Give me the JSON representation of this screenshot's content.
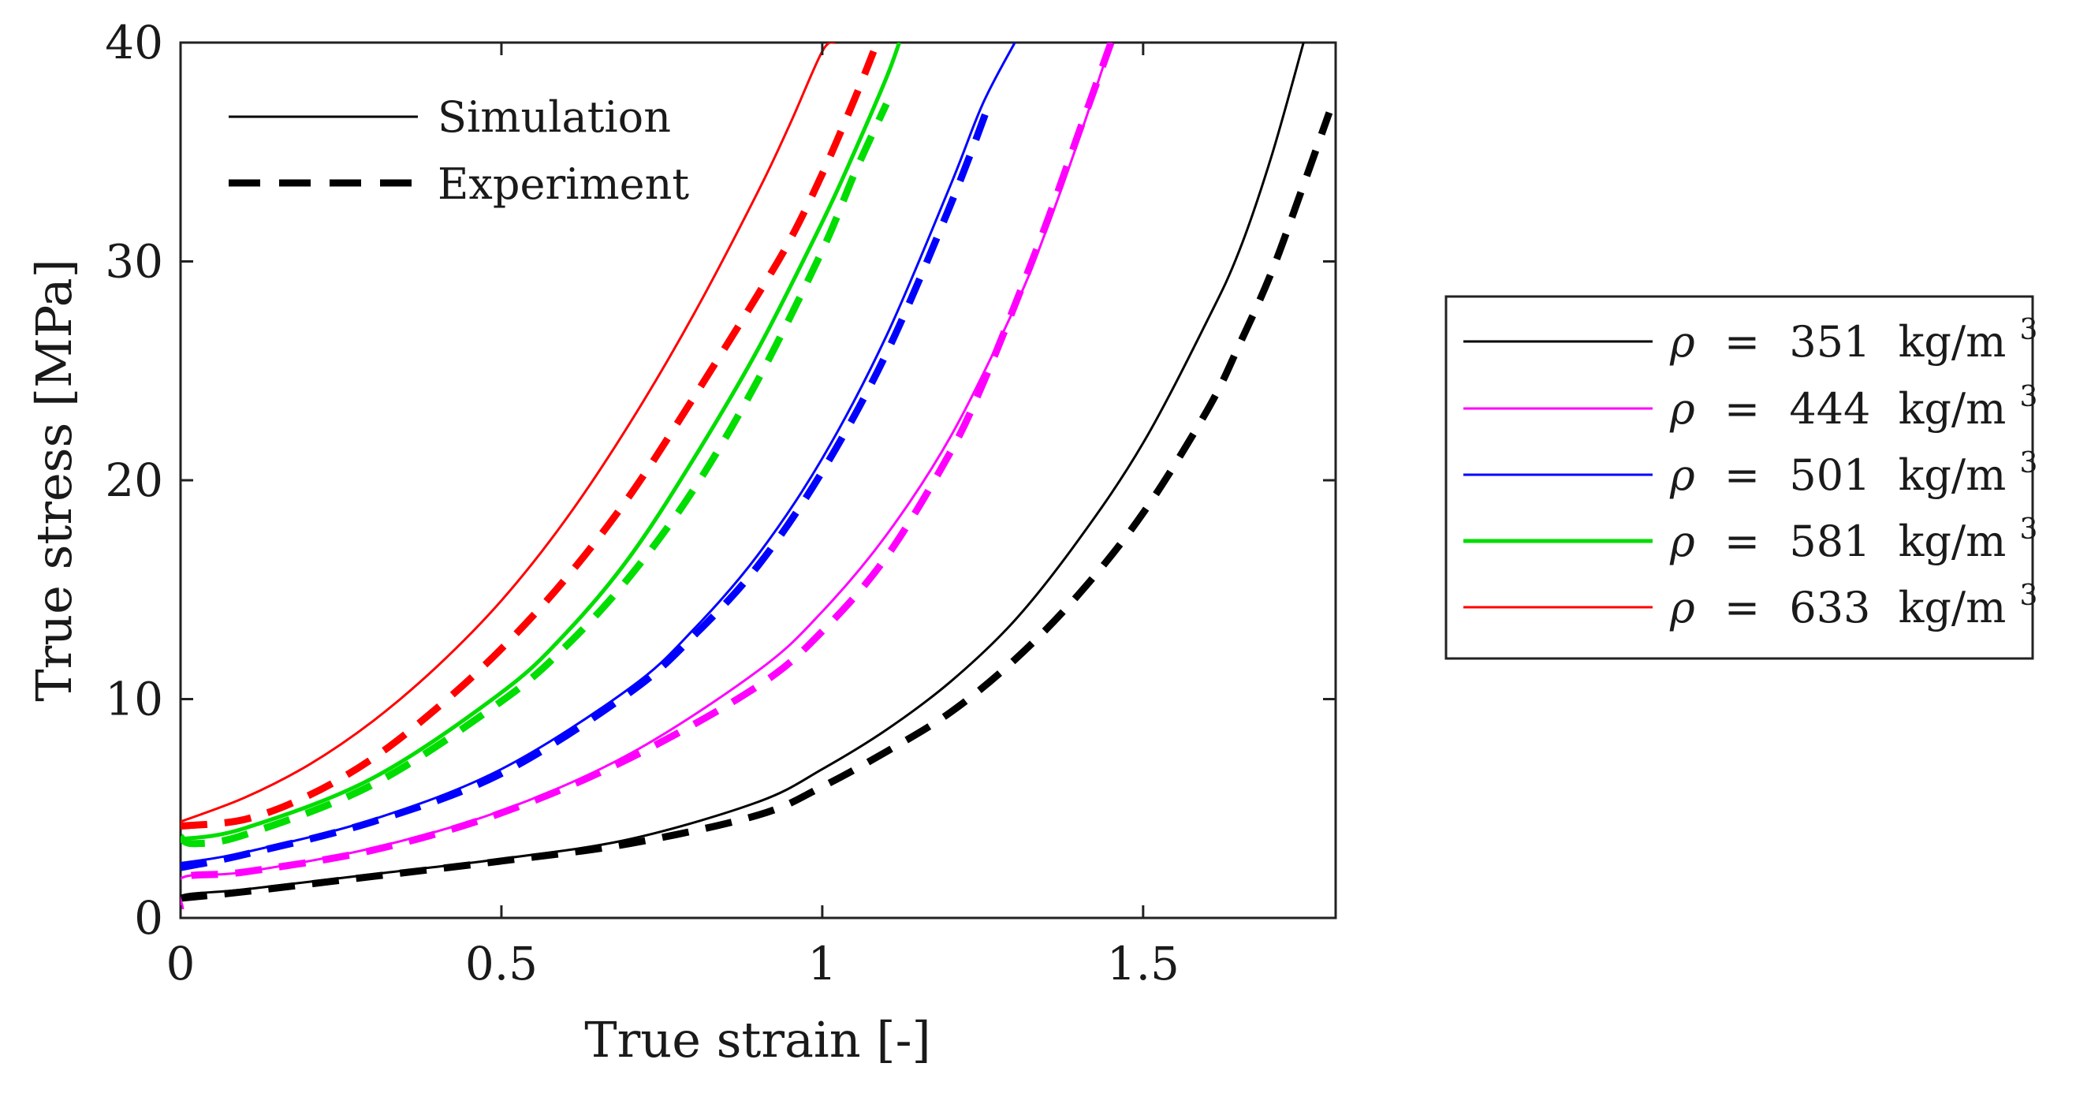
{
  "chart_data": {
    "type": "line",
    "xlabel": "True strain [-]",
    "ylabel": "True stress [MPa]",
    "xlim": [
      0,
      1.8
    ],
    "ylim": [
      0,
      40
    ],
    "xticks": [
      0,
      0.5,
      1,
      1.5
    ],
    "xtick_labels": [
      "0",
      "0.5",
      "1",
      "1.5"
    ],
    "yticks": [
      0,
      10,
      20,
      30,
      40
    ],
    "ytick_labels": [
      "0",
      "10",
      "20",
      "30",
      "40"
    ],
    "grid": false,
    "style_legend": {
      "placement": "top-left",
      "entries": [
        {
          "label": "Simulation",
          "dash": "solid"
        },
        {
          "label": "Experiment",
          "dash": "dashed"
        }
      ]
    },
    "density_legend": {
      "placement": "outside-right",
      "entries": [
        {
          "symbol": "ρ",
          "equals": "=",
          "value": "351",
          "unit": "kg/m",
          "exponent": "3",
          "color": "#000000"
        },
        {
          "symbol": "ρ",
          "equals": "=",
          "value": "444",
          "unit": "kg/m",
          "exponent": "3",
          "color": "#ff00ff"
        },
        {
          "symbol": "ρ",
          "equals": "=",
          "value": "501",
          "unit": "kg/m",
          "exponent": "3",
          "color": "#0000ff"
        },
        {
          "symbol": "ρ",
          "equals": "=",
          "value": "581",
          "unit": "kg/m",
          "exponent": "3",
          "color": "#00dd00"
        },
        {
          "symbol": "ρ",
          "equals": "=",
          "value": "633",
          "unit": "kg/m",
          "exponent": "3",
          "color": "#ff0000"
        }
      ]
    },
    "series": [
      {
        "kind": "simulation",
        "density": "351",
        "color": "#000000",
        "x": [
          0,
          0.0,
          0.1,
          0.3,
          0.5,
          0.7,
          0.9,
          1.0,
          1.1,
          1.2,
          1.3,
          1.4,
          1.5,
          1.6,
          1.65,
          1.7,
          1.75
        ],
        "y": [
          0.2,
          1.0,
          1.3,
          2.0,
          2.7,
          3.6,
          5.3,
          6.8,
          8.6,
          10.8,
          13.6,
          17.3,
          21.7,
          27.3,
          30.5,
          34.8,
          40.0
        ]
      },
      {
        "kind": "experiment",
        "density": "351",
        "color": "#000000",
        "x": [
          0,
          0.1,
          0.3,
          0.5,
          0.7,
          0.9,
          1.0,
          1.1,
          1.2,
          1.3,
          1.4,
          1.5,
          1.6,
          1.65,
          1.7,
          1.75,
          1.79
        ],
        "y": [
          0.9,
          1.2,
          1.9,
          2.6,
          3.4,
          4.7,
          6.0,
          7.6,
          9.4,
          11.8,
          14.8,
          18.5,
          23.2,
          26.2,
          29.5,
          33.5,
          36.8
        ]
      },
      {
        "kind": "simulation",
        "density": "444",
        "color": "#ff00ff",
        "x": [
          0,
          0.0,
          0.1,
          0.3,
          0.5,
          0.7,
          0.9,
          1.0,
          1.1,
          1.2,
          1.3,
          1.35,
          1.4,
          1.45
        ],
        "y": [
          0.3,
          1.8,
          2.1,
          3.2,
          4.9,
          7.5,
          11.3,
          14.0,
          17.5,
          22.0,
          27.9,
          31.5,
          35.6,
          40.0
        ]
      },
      {
        "kind": "experiment",
        "density": "444",
        "color": "#ff00ff",
        "x": [
          0,
          0.0,
          0.1,
          0.3,
          0.5,
          0.7,
          0.9,
          1.0,
          1.1,
          1.2,
          1.25,
          1.3,
          1.35,
          1.4,
          1.45
        ],
        "y": [
          0.4,
          1.8,
          2.1,
          3.1,
          4.8,
          7.3,
          10.6,
          13.1,
          16.5,
          21.3,
          24.4,
          28.0,
          31.8,
          35.9,
          40.0
        ]
      },
      {
        "kind": "simulation",
        "density": "501",
        "color": "#0000ff",
        "x": [
          0.0,
          0.1,
          0.3,
          0.5,
          0.7,
          0.8,
          0.9,
          1.0,
          1.1,
          1.2,
          1.25,
          1.3
        ],
        "y": [
          2.5,
          3.0,
          4.5,
          6.8,
          10.5,
          13.2,
          16.6,
          21.0,
          26.6,
          33.5,
          37.2,
          40.0
        ]
      },
      {
        "kind": "experiment",
        "density": "501",
        "color": "#0000ff",
        "x": [
          0.0,
          0.1,
          0.3,
          0.5,
          0.7,
          0.8,
          0.9,
          1.0,
          1.1,
          1.2,
          1.26
        ],
        "y": [
          2.3,
          2.9,
          4.4,
          6.6,
          10.3,
          12.9,
          16.1,
          20.4,
          25.8,
          32.6,
          37.2
        ]
      },
      {
        "kind": "simulation",
        "density": "581",
        "color": "#00dd00",
        "x": [
          0.0,
          0.1,
          0.3,
          0.5,
          0.6,
          0.7,
          0.8,
          0.9,
          1.0,
          1.05,
          1.1,
          1.12
        ],
        "y": [
          3.6,
          4.1,
          6.4,
          10.3,
          13.0,
          16.5,
          21.0,
          26.0,
          31.8,
          35.0,
          38.4,
          40.0
        ]
      },
      {
        "kind": "experiment",
        "density": "581",
        "color": "#00dd00",
        "x": [
          0.0,
          0.02,
          0.1,
          0.3,
          0.5,
          0.6,
          0.7,
          0.8,
          0.9,
          1.0,
          1.05,
          1.1
        ],
        "y": [
          3.7,
          3.4,
          3.8,
          6.1,
          9.9,
          12.4,
          15.6,
          19.6,
          24.6,
          30.5,
          34.0,
          37.2
        ]
      },
      {
        "kind": "simulation",
        "density": "633",
        "color": "#ff0000",
        "x": [
          0.0,
          0.1,
          0.2,
          0.3,
          0.4,
          0.5,
          0.6,
          0.7,
          0.8,
          0.9,
          0.95,
          1.0,
          1.02
        ],
        "y": [
          4.4,
          5.5,
          7.0,
          9.0,
          11.5,
          14.5,
          18.2,
          22.6,
          27.6,
          33.2,
          36.3,
          39.6,
          40.0
        ]
      },
      {
        "kind": "experiment",
        "density": "633",
        "color": "#ff0000",
        "x": [
          0.0,
          0.1,
          0.2,
          0.3,
          0.4,
          0.5,
          0.6,
          0.7,
          0.8,
          0.9,
          0.95,
          1.0,
          1.05,
          1.08
        ],
        "y": [
          4.2,
          4.5,
          5.6,
          7.3,
          9.6,
          12.3,
          15.5,
          19.3,
          23.8,
          28.5,
          31.0,
          34.0,
          37.4,
          39.6
        ]
      }
    ]
  }
}
